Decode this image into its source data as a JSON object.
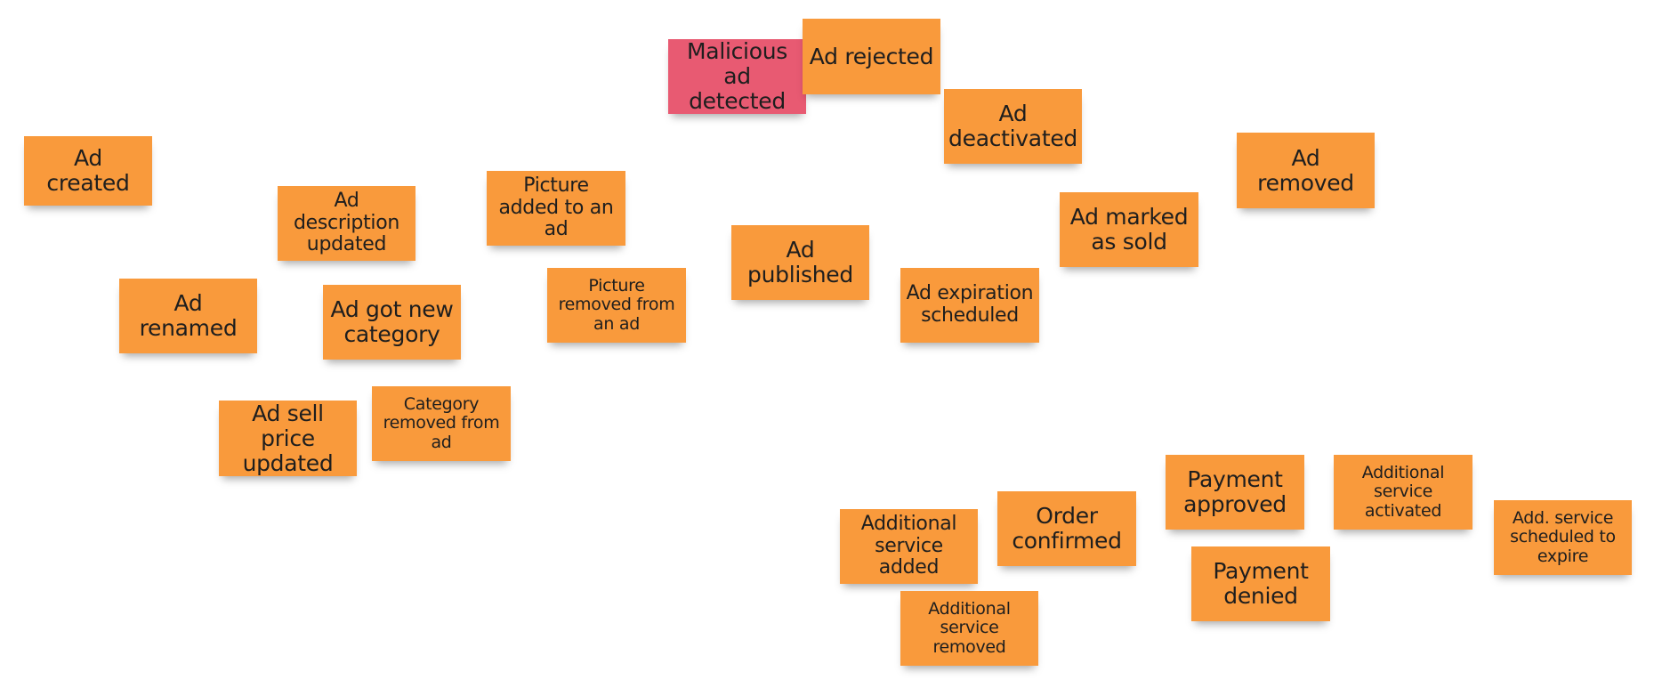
{
  "colors": {
    "event_note": "#f99a3c",
    "hotspot_note": "#e85a72",
    "note_text": "#1e1e1e"
  },
  "notes": [
    {
      "kind": "event",
      "text": "Ad created"
    },
    {
      "kind": "event",
      "text": "Ad description updated"
    },
    {
      "kind": "event",
      "text": "Picture added to an ad"
    },
    {
      "kind": "event",
      "text": "Ad renamed"
    },
    {
      "kind": "event",
      "text": "Ad got new category"
    },
    {
      "kind": "event",
      "text": "Picture removed from an ad"
    },
    {
      "kind": "event",
      "text": "Ad sell price updated"
    },
    {
      "kind": "event",
      "text": "Category removed from ad"
    },
    {
      "kind": "hotspot",
      "text": "Malicious ad detected"
    },
    {
      "kind": "event",
      "text": "Ad rejected"
    },
    {
      "kind": "event",
      "text": "Ad deactivated"
    },
    {
      "kind": "event",
      "text": "Ad published"
    },
    {
      "kind": "event",
      "text": "Ad expiration scheduled"
    },
    {
      "kind": "event",
      "text": "Ad marked as sold"
    },
    {
      "kind": "event",
      "text": "Ad removed"
    },
    {
      "kind": "event",
      "text": "Additional service added"
    },
    {
      "kind": "event",
      "text": "Order confirmed"
    },
    {
      "kind": "event",
      "text": "Payment approved"
    },
    {
      "kind": "event",
      "text": "Additional service activated"
    },
    {
      "kind": "event",
      "text": "Payment denied"
    },
    {
      "kind": "event",
      "text": "Add. service scheduled to expire"
    },
    {
      "kind": "event",
      "text": "Additional service removed"
    }
  ]
}
